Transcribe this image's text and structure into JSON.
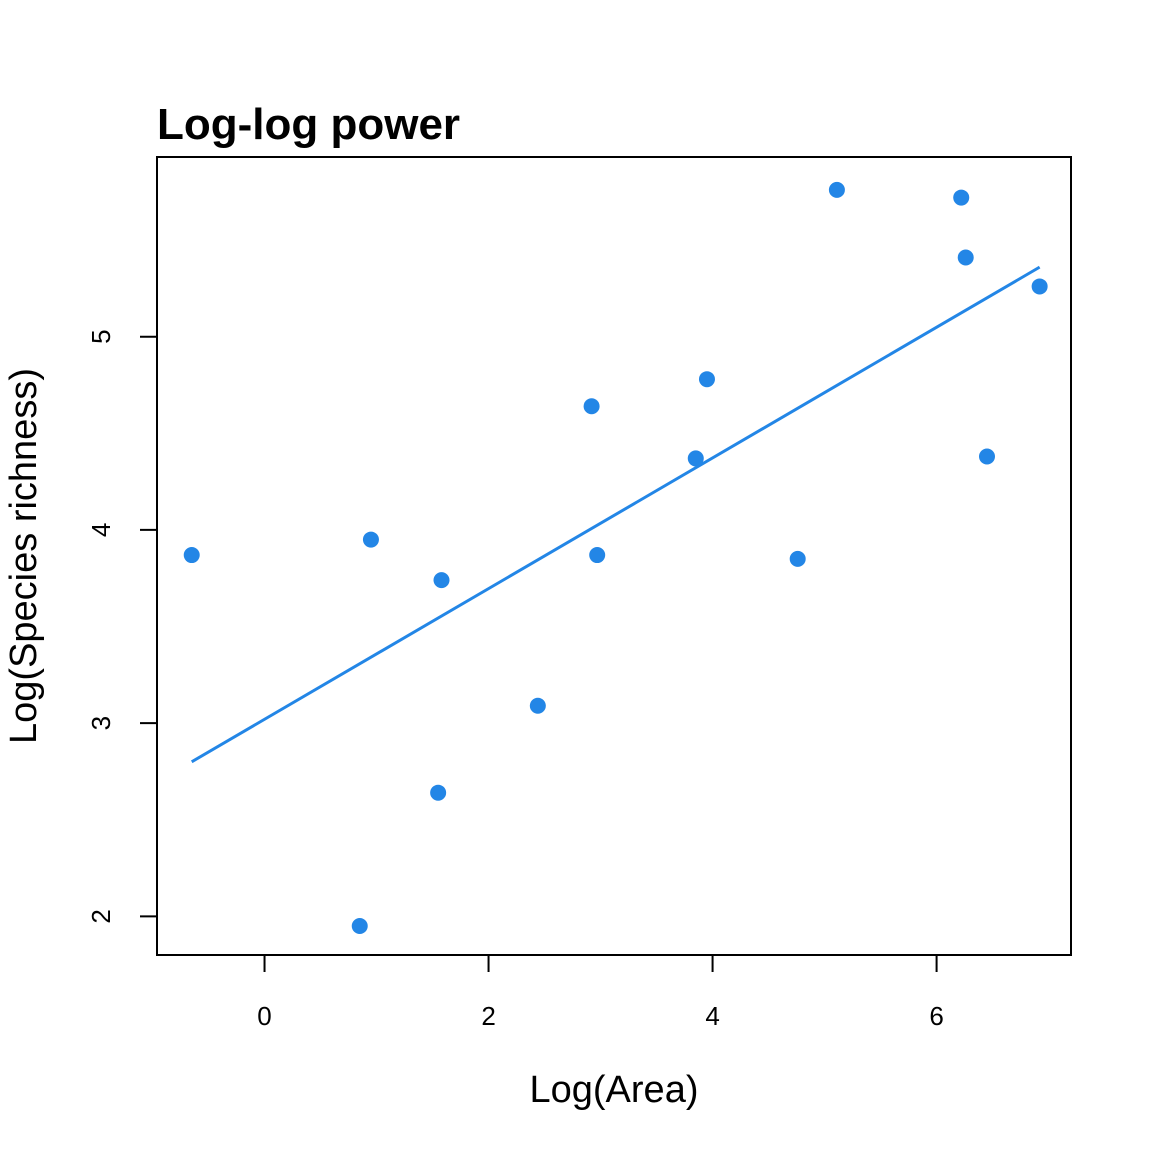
{
  "chart_data": {
    "type": "scatter",
    "title": "Log-log power",
    "xlabel": "Log(Area)",
    "ylabel": "Log(Species richness)",
    "xlim": [
      -0.96,
      7.2
    ],
    "ylim": [
      1.8,
      5.93
    ],
    "x_ticks": [
      0,
      2,
      4,
      6
    ],
    "y_ticks": [
      2,
      3,
      4,
      5
    ],
    "grid": false,
    "legend": "none",
    "point_color": "#2386E6",
    "line_color": "#2386E6",
    "points": [
      {
        "x": -0.65,
        "y": 3.87
      },
      {
        "x": 0.85,
        "y": 1.95
      },
      {
        "x": 0.95,
        "y": 3.95
      },
      {
        "x": 1.55,
        "y": 2.64
      },
      {
        "x": 1.58,
        "y": 3.74
      },
      {
        "x": 2.44,
        "y": 3.09
      },
      {
        "x": 2.92,
        "y": 4.64
      },
      {
        "x": 2.97,
        "y": 3.87
      },
      {
        "x": 3.85,
        "y": 4.37
      },
      {
        "x": 3.95,
        "y": 4.78
      },
      {
        "x": 4.76,
        "y": 3.85
      },
      {
        "x": 5.11,
        "y": 5.76
      },
      {
        "x": 6.22,
        "y": 5.72
      },
      {
        "x": 6.26,
        "y": 5.41
      },
      {
        "x": 6.45,
        "y": 4.38
      },
      {
        "x": 6.92,
        "y": 5.26
      }
    ],
    "fit_line": [
      {
        "x": -0.65,
        "y": 2.8
      },
      {
        "x": 6.92,
        "y": 5.36
      }
    ]
  }
}
